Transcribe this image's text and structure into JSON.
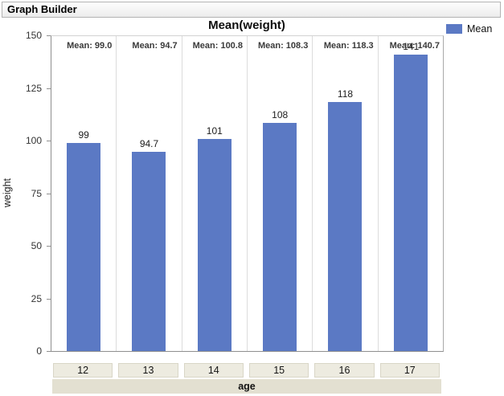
{
  "window": {
    "title": "Graph Builder"
  },
  "chart": {
    "legend": {
      "label": "Mean",
      "position": "top-right"
    }
  },
  "chart_data": {
    "type": "bar",
    "title": "Mean(weight)",
    "categories": [
      "12",
      "13",
      "14",
      "15",
      "16",
      "17"
    ],
    "series": [
      {
        "name": "Mean",
        "values": [
          99.0,
          94.7,
          100.8,
          108.3,
          118.3,
          140.7
        ]
      }
    ],
    "bar_labels": [
      "99",
      "94.7",
      "101",
      "108",
      "118",
      "141"
    ],
    "captions": [
      "Mean: 99.0",
      "Mean: 94.7",
      "Mean: 100.8",
      "Mean: 108.3",
      "Mean: 118.3",
      "Mean: 140.7"
    ],
    "xlabel": "age",
    "ylabel": "weight",
    "ylim": [
      0,
      150
    ],
    "yticks": [
      0,
      25,
      50,
      75,
      100,
      125,
      150
    ],
    "grid": false,
    "legend_position": "top-right",
    "bar_color": "#5b79c4"
  },
  "colors": {
    "bar": "#5b79c4",
    "category_box_bg": "#edebe0",
    "axis_strip_bg": "#e3e0d1",
    "caption_text": "#3a3a3a"
  }
}
